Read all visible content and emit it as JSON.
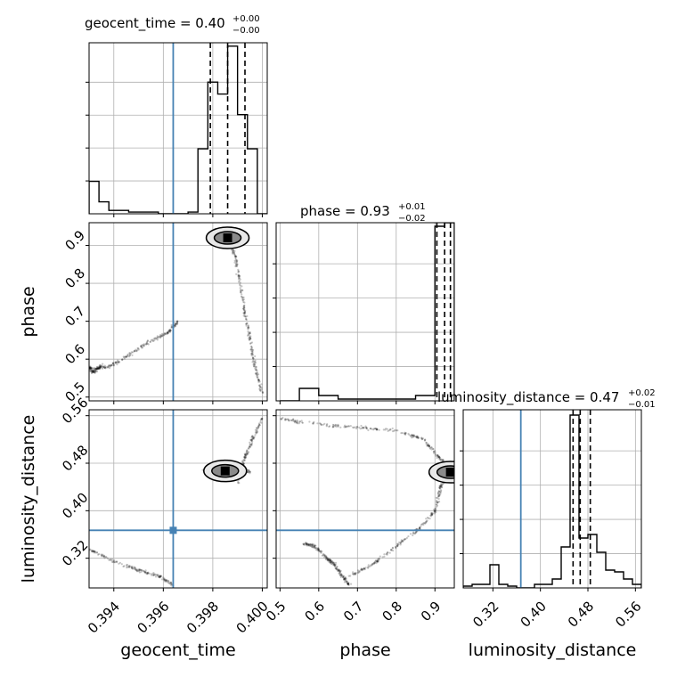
{
  "colors": {
    "truth": "#4682b4",
    "hist": "#000000",
    "grid": "#b0b0b0",
    "scatter": "#000000"
  },
  "chart_data": {
    "type": "corner",
    "truths": {
      "geocent_time": 0.3964,
      "phase": null,
      "luminosity_distance": 0.367
    },
    "panels": [
      {
        "id": "hist-geocent_time",
        "kind": "histogram",
        "param": "geocent_time",
        "title": {
          "main": "geocent_time = 0.40",
          "sup": "+0.00",
          "sub": "−0.00"
        },
        "xlim": [
          0.393,
          0.4002
        ],
        "ylim": [
          0,
          1.0
        ],
        "bin_edges": [
          0.393,
          0.3934,
          0.3938,
          0.3942,
          0.3946,
          0.395,
          0.3954,
          0.3958,
          0.3962,
          0.3966,
          0.397,
          0.3974,
          0.3978,
          0.3982,
          0.3986,
          0.399,
          0.3994,
          0.3998,
          0.4002
        ],
        "counts": [
          0.19,
          0.07,
          0.02,
          0.02,
          0.01,
          0.01,
          0.01,
          0.0,
          0.0,
          0.0,
          0.01,
          0.38,
          0.77,
          0.7,
          0.98,
          0.58,
          0.38,
          0.0
        ],
        "quantiles": [
          0.3979,
          0.3986,
          0.3993
        ],
        "truth": 0.3964
      },
      {
        "id": "hist-phase",
        "kind": "histogram",
        "param": "phase",
        "title": {
          "main": "phase = 0.93",
          "sup": "+0.01",
          "sub": "−0.02"
        },
        "xlim": [
          0.49,
          0.95
        ],
        "ylim": [
          0,
          1.0
        ],
        "bin_edges": [
          0.5,
          0.55,
          0.6,
          0.65,
          0.7,
          0.75,
          0.8,
          0.85,
          0.9,
          0.925,
          0.95
        ],
        "counts": [
          0.0,
          0.07,
          0.03,
          0.01,
          0.01,
          0.01,
          0.01,
          0.03,
          0.98,
          1.0
        ],
        "quantiles": [
          0.905,
          0.925,
          0.94
        ],
        "truth": null
      },
      {
        "id": "hist-luminosity_distance",
        "kind": "histogram",
        "param": "luminosity_distance",
        "title": {
          "main": "luminosity_distance = 0.47",
          "sup": "+0.02",
          "sub": "−0.01"
        },
        "xlim": [
          0.27,
          0.57
        ],
        "ylim": [
          0,
          1.0
        ],
        "bin_edges": [
          0.27,
          0.285,
          0.3,
          0.315,
          0.33,
          0.345,
          0.36,
          0.375,
          0.39,
          0.405,
          0.42,
          0.435,
          0.45,
          0.465,
          0.48,
          0.495,
          0.51,
          0.525,
          0.54,
          0.555,
          0.57
        ],
        "counts": [
          0.01,
          0.02,
          0.02,
          0.13,
          0.02,
          0.01,
          0.0,
          0.0,
          0.02,
          0.02,
          0.05,
          0.23,
          0.97,
          0.28,
          0.3,
          0.2,
          0.1,
          0.09,
          0.05,
          0.02
        ],
        "quantiles": [
          0.455,
          0.467,
          0.484
        ],
        "truth": 0.367
      },
      {
        "id": "scatter-phase-vs-geocent_time",
        "kind": "scatter2d",
        "x_param": "geocent_time",
        "y_param": "phase",
        "xlim": [
          0.393,
          0.4002
        ],
        "ylim": [
          0.49,
          0.96
        ],
        "truth_x": 0.3964,
        "truth_y": null,
        "peak": [
          0.3986,
          0.92
        ],
        "tracks": [
          [
            [
              0.393,
              0.575
            ],
            [
              0.3938,
              0.58
            ],
            [
              0.3946,
              0.61
            ],
            [
              0.3954,
              0.645
            ],
            [
              0.3962,
              0.67
            ],
            [
              0.3966,
              0.7
            ]
          ],
          [
            [
              0.3986,
              0.92
            ],
            [
              0.3989,
              0.87
            ],
            [
              0.3991,
              0.8
            ],
            [
              0.3993,
              0.72
            ],
            [
              0.3995,
              0.65
            ],
            [
              0.3997,
              0.58
            ],
            [
              0.4,
              0.51
            ]
          ],
          [
            [
              0.393,
              0.58
            ],
            [
              0.3932,
              0.565
            ],
            [
              0.3935,
              0.585
            ]
          ]
        ]
      },
      {
        "id": "scatter-luminosity_distance-vs-geocent_time",
        "kind": "scatter2d",
        "x_param": "geocent_time",
        "y_param": "luminosity_distance",
        "xlim": [
          0.393,
          0.4002
        ],
        "ylim": [
          0.27,
          0.57
        ],
        "truth_x": 0.3964,
        "truth_y": 0.367,
        "peak": [
          0.3985,
          0.467
        ],
        "tracks": [
          [
            [
              0.393,
              0.335
            ],
            [
              0.394,
              0.315
            ],
            [
              0.395,
              0.3
            ],
            [
              0.3958,
              0.29
            ],
            [
              0.3964,
              0.275
            ]
          ],
          [
            [
              0.399,
              0.445
            ],
            [
              0.3993,
              0.49
            ],
            [
              0.3996,
              0.52
            ],
            [
              0.4,
              0.555
            ]
          ],
          [
            [
              0.3976,
              0.47
            ],
            [
              0.3982,
              0.475
            ],
            [
              0.399,
              0.475
            ],
            [
              0.3995,
              0.465
            ]
          ]
        ]
      },
      {
        "id": "scatter-luminosity_distance-vs-phase",
        "kind": "scatter2d",
        "x_param": "phase",
        "y_param": "luminosity_distance",
        "xlim": [
          0.49,
          0.95
        ],
        "ylim": [
          0.27,
          0.57
        ],
        "truth_x": null,
        "truth_y": 0.367,
        "peak": [
          0.94,
          0.465
        ],
        "tracks": [
          [
            [
              0.5,
              0.555
            ],
            [
              0.6,
              0.545
            ],
            [
              0.7,
              0.54
            ],
            [
              0.8,
              0.535
            ],
            [
              0.87,
              0.52
            ],
            [
              0.91,
              0.49
            ],
            [
              0.94,
              0.47
            ]
          ],
          [
            [
              0.94,
              0.465
            ],
            [
              0.915,
              0.44
            ],
            [
              0.9,
              0.4
            ],
            [
              0.86,
              0.37
            ],
            [
              0.8,
              0.34
            ],
            [
              0.74,
              0.31
            ],
            [
              0.68,
              0.29
            ]
          ],
          [
            [
              0.56,
              0.345
            ],
            [
              0.59,
              0.34
            ],
            [
              0.62,
              0.32
            ],
            [
              0.64,
              0.31
            ],
            [
              0.66,
              0.29
            ],
            [
              0.68,
              0.275
            ]
          ]
        ]
      }
    ],
    "axes": {
      "geocent_time": {
        "label": "geocent_time",
        "ticks": [
          0.394,
          0.396,
          0.398,
          0.4
        ],
        "tick_labels": [
          "0.394",
          "0.396",
          "0.398",
          "0.400"
        ]
      },
      "phase_x": {
        "label": "phase",
        "ticks": [
          0.5,
          0.6,
          0.7,
          0.8,
          0.9
        ],
        "tick_labels": [
          "0.5",
          "0.6",
          "0.7",
          "0.8",
          "0.9"
        ]
      },
      "phase_y": {
        "label": "phase",
        "ticks": [
          0.5,
          0.6,
          0.7,
          0.8,
          0.9
        ],
        "tick_labels": [
          "0.5",
          "0.6",
          "0.7",
          "0.8",
          "0.9"
        ]
      },
      "luminosity_distance_x": {
        "label": "luminosity_distance",
        "ticks": [
          0.32,
          0.4,
          0.48,
          0.56
        ],
        "tick_labels": [
          "0.32",
          "0.40",
          "0.48",
          "0.56"
        ]
      },
      "luminosity_distance_y": {
        "label": "luminosity_distance",
        "ticks": [
          0.32,
          0.4,
          0.48,
          0.56
        ],
        "tick_labels": [
          "0.32",
          "0.40",
          "0.48",
          "0.56"
        ]
      }
    },
    "grid": true
  }
}
